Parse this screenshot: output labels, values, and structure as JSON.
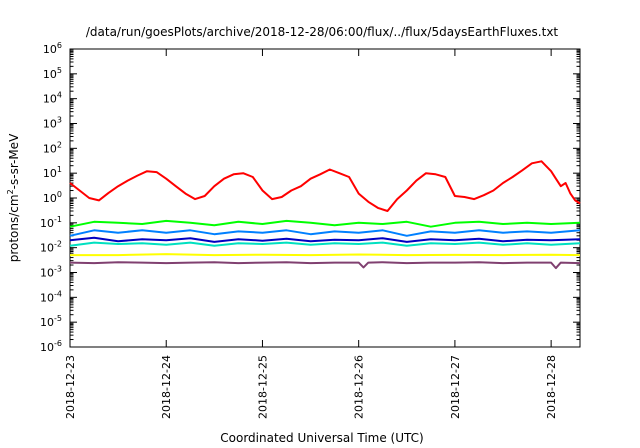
{
  "chart_data": {
    "type": "line",
    "title": "/data/run/goesPlots/archive/2018-12-28/06:00/flux/../flux/5daysEarthFluxes.txt",
    "xlabel": "Coordinated Universal Time (UTC)",
    "ylabel": "protons/cm²-s-sr-MeV",
    "ylabel_parts": {
      "pre": "protons/cm",
      "sup": "2",
      "post": "-s-sr-MeV"
    },
    "yscale": "log",
    "ylim": [
      -6,
      6
    ],
    "xlim": [
      0,
      5.3
    ],
    "grid": false,
    "x_ticks": [
      {
        "pos": 0,
        "label": "2018-12-23"
      },
      {
        "pos": 1,
        "label": "2018-12-24"
      },
      {
        "pos": 2,
        "label": "2018-12-25"
      },
      {
        "pos": 3,
        "label": "2018-12-26"
      },
      {
        "pos": 4,
        "label": "2018-12-27"
      },
      {
        "pos": 5,
        "label": "2018-12-28"
      }
    ],
    "y_ticks": [
      {
        "exp": 6,
        "base": "10",
        "sup": "6"
      },
      {
        "exp": 5,
        "base": "10",
        "sup": "5"
      },
      {
        "exp": 4,
        "base": "10",
        "sup": "4"
      },
      {
        "exp": 3,
        "base": "10",
        "sup": "3"
      },
      {
        "exp": 2,
        "base": "10",
        "sup": "2"
      },
      {
        "exp": 1,
        "base": "10",
        "sup": "1"
      },
      {
        "exp": 0,
        "base": "10",
        "sup": "0"
      },
      {
        "exp": -1,
        "base": "10",
        "sup": "-1"
      },
      {
        "exp": -2,
        "base": "10",
        "sup": "-2"
      },
      {
        "exp": -3,
        "base": "10",
        "sup": "-3"
      },
      {
        "exp": -4,
        "base": "10",
        "sup": "-4"
      },
      {
        "exp": -5,
        "base": "10",
        "sup": "-5"
      },
      {
        "exp": -6,
        "base": "10",
        "sup": "-6"
      }
    ],
    "series": [
      {
        "color": "#ff0000",
        "x": [
          0,
          0.1,
          0.2,
          0.3,
          0.4,
          0.5,
          0.6,
          0.7,
          0.8,
          0.9,
          1.0,
          1.1,
          1.2,
          1.3,
          1.4,
          1.5,
          1.6,
          1.7,
          1.8,
          1.9,
          2.0,
          2.1,
          2.2,
          2.3,
          2.4,
          2.5,
          2.6,
          2.7,
          2.8,
          2.9,
          3.0,
          3.1,
          3.2,
          3.3,
          3.4,
          3.5,
          3.6,
          3.7,
          3.8,
          3.9,
          4.0,
          4.1,
          4.2,
          4.3,
          4.4,
          4.5,
          4.6,
          4.7,
          4.8,
          4.9,
          5.0,
          5.05,
          5.1,
          5.15,
          5.2,
          5.25,
          5.3
        ],
        "values": [
          4,
          2,
          1,
          0.8,
          1.6,
          3,
          5,
          8,
          12,
          11,
          6,
          3,
          1.5,
          0.9,
          1.2,
          3,
          6,
          9,
          10,
          7,
          2,
          0.9,
          1.1,
          2,
          3,
          6,
          9,
          14,
          10,
          7,
          1.5,
          0.7,
          0.4,
          0.3,
          0.9,
          2,
          5,
          10,
          9,
          7,
          1.2,
          1.1,
          0.9,
          1.3,
          2,
          4,
          7,
          13,
          25,
          30,
          12,
          6,
          3,
          4,
          1.5,
          0.8,
          0.6
        ]
      },
      {
        "color": "#00ff00",
        "x": [
          0,
          0.25,
          0.5,
          0.75,
          1.0,
          1.25,
          1.5,
          1.75,
          2.0,
          2.25,
          2.5,
          2.75,
          3.0,
          3.25,
          3.5,
          3.75,
          4.0,
          4.25,
          4.5,
          4.75,
          5.0,
          5.3
        ],
        "values": [
          0.07,
          0.11,
          0.1,
          0.09,
          0.12,
          0.1,
          0.08,
          0.11,
          0.09,
          0.12,
          0.1,
          0.08,
          0.1,
          0.09,
          0.11,
          0.07,
          0.1,
          0.11,
          0.09,
          0.1,
          0.09,
          0.1
        ]
      },
      {
        "color": "#0080ff",
        "x": [
          0,
          0.25,
          0.5,
          0.75,
          1.0,
          1.25,
          1.5,
          1.75,
          2.0,
          2.25,
          2.5,
          2.75,
          3.0,
          3.25,
          3.5,
          3.75,
          4.0,
          4.25,
          4.5,
          4.75,
          5.0,
          5.3
        ],
        "values": [
          0.03,
          0.05,
          0.04,
          0.05,
          0.04,
          0.05,
          0.035,
          0.045,
          0.04,
          0.05,
          0.035,
          0.045,
          0.04,
          0.05,
          0.03,
          0.045,
          0.04,
          0.05,
          0.04,
          0.045,
          0.04,
          0.05
        ]
      },
      {
        "color": "#00e0c0",
        "x": [
          0,
          0.25,
          0.5,
          0.75,
          1.0,
          1.25,
          1.5,
          1.75,
          2.0,
          2.25,
          2.5,
          2.75,
          3.0,
          3.25,
          3.5,
          3.75,
          4.0,
          4.25,
          4.5,
          4.75,
          5.0,
          5.3
        ],
        "values": [
          0.012,
          0.016,
          0.014,
          0.015,
          0.013,
          0.016,
          0.012,
          0.015,
          0.014,
          0.016,
          0.013,
          0.015,
          0.014,
          0.016,
          0.012,
          0.015,
          0.014,
          0.016,
          0.013,
          0.015,
          0.013,
          0.015
        ]
      },
      {
        "color": "#0000c0",
        "x": [
          0,
          0.25,
          0.5,
          0.75,
          1.0,
          1.25,
          1.5,
          1.75,
          2.0,
          2.25,
          2.5,
          2.75,
          3.0,
          3.25,
          3.5,
          3.75,
          4.0,
          4.25,
          4.5,
          4.75,
          5.0,
          5.3
        ],
        "values": [
          0.02,
          0.025,
          0.018,
          0.022,
          0.02,
          0.024,
          0.017,
          0.022,
          0.019,
          0.023,
          0.018,
          0.021,
          0.02,
          0.024,
          0.017,
          0.022,
          0.02,
          0.023,
          0.018,
          0.021,
          0.02,
          0.022
        ]
      },
      {
        "color": "#ffff00",
        "x": [
          0,
          0.5,
          1.0,
          1.5,
          2.0,
          2.5,
          3.0,
          3.5,
          4.0,
          4.5,
          5.0,
          5.3
        ],
        "values": [
          0.005,
          0.005,
          0.0055,
          0.005,
          0.0052,
          0.005,
          0.0053,
          0.005,
          0.0051,
          0.005,
          0.0052,
          0.005
        ]
      },
      {
        "color": "#804070",
        "x": [
          0,
          0.25,
          0.5,
          0.75,
          1.0,
          1.25,
          1.5,
          1.75,
          2.0,
          2.25,
          2.5,
          2.75,
          3.0,
          3.05,
          3.1,
          3.25,
          3.5,
          3.75,
          4.0,
          4.25,
          4.5,
          4.75,
          5.0,
          5.05,
          5.1,
          5.3
        ],
        "values": [
          0.0025,
          0.0024,
          0.0026,
          0.0025,
          0.0024,
          0.0025,
          0.0026,
          0.0024,
          0.0025,
          0.0026,
          0.0024,
          0.0025,
          0.0025,
          0.0016,
          0.0025,
          0.0026,
          0.0024,
          0.0025,
          0.0025,
          0.0026,
          0.0024,
          0.0025,
          0.0025,
          0.0015,
          0.0025,
          0.0024
        ]
      }
    ]
  }
}
